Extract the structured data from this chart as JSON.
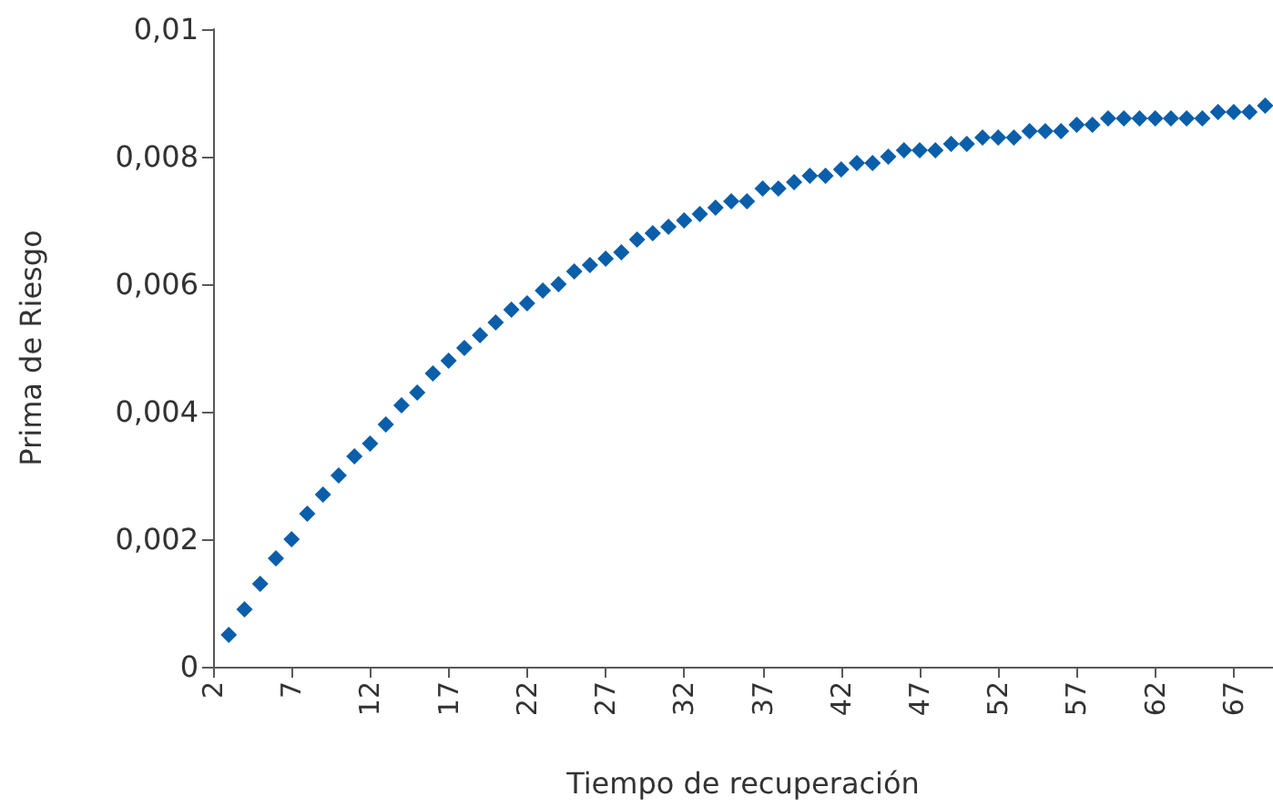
{
  "chart_data": {
    "type": "scatter",
    "xlabel": "Tiempo de recuperación",
    "ylabel": "Prima de Riesgo",
    "x": [
      3,
      4,
      5,
      6,
      7,
      8,
      9,
      10,
      11,
      12,
      13,
      14,
      15,
      16,
      17,
      18,
      19,
      20,
      21,
      22,
      23,
      24,
      25,
      26,
      27,
      28,
      29,
      30,
      31,
      32,
      33,
      34,
      35,
      36,
      37,
      38,
      39,
      40,
      41,
      42,
      43,
      44,
      45,
      46,
      47,
      48,
      49,
      50,
      51,
      52,
      53,
      54,
      55,
      56,
      57,
      58,
      59,
      60,
      61,
      62,
      63,
      64,
      65,
      66,
      67,
      68,
      69
    ],
    "series": [
      {
        "color": "#0a5eaa",
        "values": [
          0.0005,
          0.0009,
          0.0013,
          0.0017,
          0.002,
          0.0024,
          0.0027,
          0.003,
          0.0033,
          0.0035,
          0.0038,
          0.0041,
          0.0043,
          0.0046,
          0.0048,
          0.005,
          0.0052,
          0.0054,
          0.0056,
          0.0057,
          0.0059,
          0.006,
          0.0062,
          0.0063,
          0.0064,
          0.0065,
          0.0067,
          0.0068,
          0.0069,
          0.007,
          0.0071,
          0.0072,
          0.0073,
          0.0073,
          0.0075,
          0.0075,
          0.0076,
          0.0077,
          0.0077,
          0.0078,
          0.0079,
          0.0079,
          0.008,
          0.0081,
          0.0081,
          0.0081,
          0.0082,
          0.0082,
          0.0083,
          0.0083,
          0.0083,
          0.0084,
          0.0084,
          0.0084,
          0.0085,
          0.0085,
          0.0086,
          0.0086,
          0.0086,
          0.0086,
          0.0086,
          0.0086,
          0.0086,
          0.0087,
          0.0087,
          0.0087,
          0.0088
        ]
      }
    ],
    "xlim": [
      2,
      69.5
    ],
    "xticks": [
      2,
      7,
      12,
      17,
      22,
      27,
      32,
      37,
      42,
      47,
      52,
      57,
      62,
      67
    ],
    "ylim": [
      0,
      0.01
    ],
    "yticks": [
      0,
      {
        "value": 0.002,
        "label": "0,002"
      },
      {
        "value": 0.004,
        "label": "0,004"
      },
      {
        "value": 0.006,
        "label": "0,006"
      },
      {
        "value": 0.008,
        "label": "0,008"
      },
      {
        "value": 0.01,
        "label": "0,01"
      }
    ],
    "marker": "diamond",
    "grid": false
  }
}
